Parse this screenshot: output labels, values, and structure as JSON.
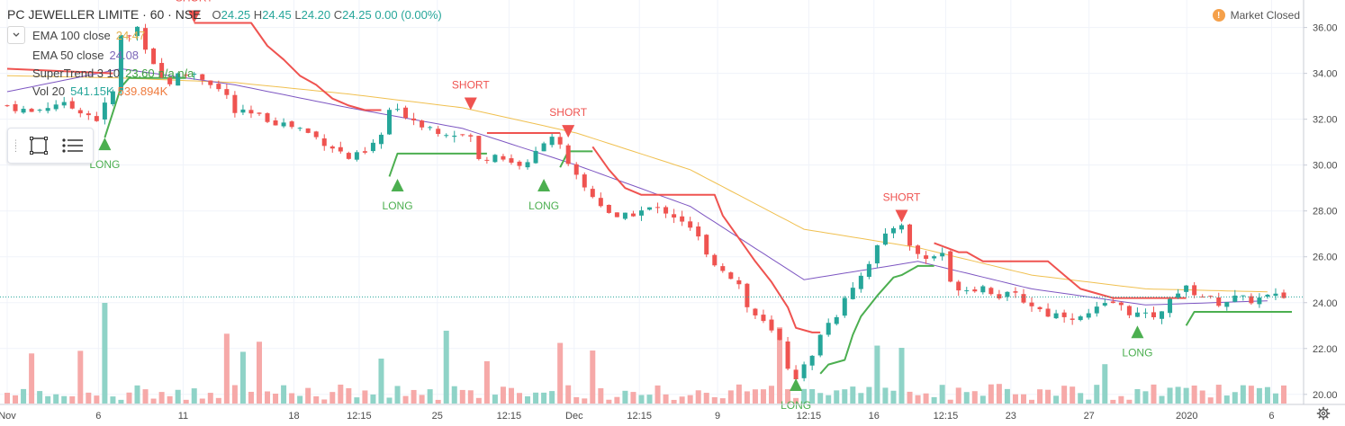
{
  "header": {
    "symbol": "PC JEWELLER LIMITE · 60 · NSE",
    "ohlc": {
      "o": "24.25",
      "h": "24.45",
      "l": "24.20",
      "c": "24.25",
      "chg": "0.00 (0.00%)"
    },
    "o_label": "O",
    "h_label": "H",
    "l_label": "L",
    "c_label": "C"
  },
  "indicators": [
    {
      "name": "EMA 100 close",
      "value": "24.47"
    },
    {
      "name": "EMA 50 close",
      "value": "24.08"
    },
    {
      "name": "SuperTrend 3 10",
      "value": "23.60",
      "extra": "n/a n/a"
    },
    {
      "name": "Vol 20",
      "value": "541.15K",
      "value2": "539.894K"
    }
  ],
  "market_status": "Market Closed",
  "market_icon": "!",
  "colors": {
    "up": "#26a69a",
    "down": "#ef5350",
    "ema100": "#f0c050",
    "ema50": "#7e57c2",
    "st_up": "#4caf50",
    "st_down": "#ef5350",
    "vol_up": "#8fd3c7",
    "vol_down": "#f6a9a8",
    "grid": "#f0f3fa",
    "axis_text": "#4a4a4a"
  },
  "chart_data": {
    "type": "candlestick",
    "symbol": "PC JEWELLER LIMITE",
    "interval": "60",
    "exchange": "NSE",
    "ylim": [
      19.6,
      37.2
    ],
    "y_ticks": [
      "36.00",
      "34.00",
      "32.00",
      "30.00",
      "28.00",
      "26.00",
      "24.00",
      "22.00",
      "20.00"
    ],
    "last_price": "24.25",
    "x_labels": [
      "Nov",
      "6",
      "11",
      "18",
      "12:15",
      "25",
      "12:15",
      "Dec",
      "12:15",
      "9",
      "12:15",
      "16",
      "12:15",
      "23",
      "27",
      "2020",
      "6"
    ],
    "close_path": [
      [
        0,
        32.6
      ],
      [
        3,
        32.3
      ],
      [
        6,
        32.7
      ],
      [
        9,
        32.4
      ],
      [
        11,
        32.0
      ],
      [
        13,
        33.2
      ],
      [
        14,
        35.6
      ],
      [
        15,
        35.6
      ],
      [
        16,
        36.0
      ],
      [
        17,
        35.2
      ],
      [
        18,
        34.5
      ],
      [
        19,
        33.8
      ],
      [
        20,
        33.6
      ],
      [
        21,
        33.9
      ],
      [
        23,
        34.0
      ],
      [
        25,
        33.6
      ],
      [
        27,
        33.0
      ],
      [
        28,
        32.3
      ],
      [
        30,
        32.2
      ],
      [
        32,
        32.0
      ],
      [
        34,
        31.8
      ],
      [
        36,
        31.6
      ],
      [
        38,
        31.2
      ],
      [
        40,
        30.8
      ],
      [
        42,
        30.3
      ],
      [
        44,
        30.5
      ],
      [
        46,
        31.3
      ],
      [
        47,
        32.4
      ],
      [
        49,
        32.2
      ],
      [
        51,
        31.8
      ],
      [
        53,
        31.5
      ],
      [
        55,
        31.4
      ],
      [
        57,
        31.2
      ],
      [
        58,
        30.2
      ],
      [
        60,
        30.5
      ],
      [
        62,
        30.1
      ],
      [
        64,
        30.0
      ],
      [
        66,
        31.1
      ],
      [
        67,
        31.3
      ],
      [
        68,
        30.8
      ],
      [
        69,
        29.9
      ],
      [
        71,
        29.0
      ],
      [
        73,
        28.3
      ],
      [
        75,
        27.6
      ],
      [
        77,
        27.9
      ],
      [
        79,
        28.1
      ],
      [
        81,
        28.0
      ],
      [
        83,
        27.6
      ],
      [
        85,
        26.8
      ],
      [
        86,
        26.0
      ],
      [
        88,
        25.5
      ],
      [
        90,
        24.8
      ],
      [
        91,
        23.8
      ],
      [
        93,
        23.1
      ],
      [
        95,
        22.3
      ],
      [
        96,
        21.2
      ],
      [
        97,
        20.8
      ],
      [
        99,
        21.6
      ],
      [
        100,
        22.7
      ],
      [
        102,
        23.5
      ],
      [
        103,
        24.3
      ],
      [
        105,
        25.2
      ],
      [
        107,
        26.4
      ],
      [
        109,
        27.3
      ],
      [
        110,
        27.5
      ],
      [
        111,
        26.4
      ],
      [
        113,
        25.9
      ],
      [
        115,
        26.2
      ],
      [
        116,
        24.8
      ],
      [
        118,
        24.6
      ],
      [
        120,
        24.7
      ],
      [
        122,
        24.3
      ],
      [
        124,
        24.3
      ],
      [
        126,
        23.9
      ],
      [
        128,
        23.5
      ],
      [
        130,
        23.5
      ],
      [
        132,
        23.3
      ],
      [
        134,
        23.7
      ],
      [
        136,
        24.0
      ],
      [
        138,
        23.6
      ],
      [
        140,
        23.4
      ],
      [
        142,
        23.5
      ],
      [
        143,
        24.3
      ],
      [
        145,
        24.6
      ],
      [
        147,
        24.3
      ],
      [
        149,
        24.0
      ],
      [
        151,
        24.2
      ],
      [
        153,
        24.1
      ],
      [
        155,
        24.25
      ]
    ],
    "ema100_path": [
      [
        0,
        33.9
      ],
      [
        14,
        33.8
      ],
      [
        28,
        33.6
      ],
      [
        42,
        33.1
      ],
      [
        56,
        32.5
      ],
      [
        70,
        31.4
      ],
      [
        84,
        29.8
      ],
      [
        98,
        27.2
      ],
      [
        112,
        26.4
      ],
      [
        126,
        25.2
      ],
      [
        140,
        24.6
      ],
      [
        155,
        24.47
      ]
    ],
    "ema50_path": [
      [
        0,
        33.2
      ],
      [
        14,
        34.2
      ],
      [
        28,
        33.5
      ],
      [
        42,
        32.5
      ],
      [
        56,
        31.6
      ],
      [
        70,
        30.0
      ],
      [
        84,
        28.2
      ],
      [
        98,
        25.0
      ],
      [
        112,
        25.8
      ],
      [
        126,
        24.6
      ],
      [
        140,
        23.9
      ],
      [
        155,
        24.08
      ]
    ],
    "supertrend": [
      {
        "dir": "down",
        "points": [
          [
            0,
            34.2
          ],
          [
            13,
            34.0
          ]
        ]
      },
      {
        "dir": "up",
        "points": [
          [
            12,
            31.2
          ],
          [
            14,
            33.4
          ],
          [
            15,
            33.8
          ],
          [
            16,
            33.8
          ],
          [
            22,
            33.8
          ]
        ]
      },
      {
        "dir": "down",
        "points": [
          [
            23,
            36.2
          ],
          [
            30,
            36.2
          ],
          [
            32,
            35.2
          ],
          [
            34,
            34.6
          ],
          [
            36,
            33.9
          ],
          [
            38,
            33.5
          ],
          [
            40,
            32.9
          ],
          [
            42,
            32.6
          ],
          [
            44,
            32.4
          ],
          [
            46,
            32.4
          ]
        ]
      },
      {
        "dir": "up",
        "points": [
          [
            47,
            29.5
          ],
          [
            48,
            30.5
          ],
          [
            59,
            30.5
          ]
        ]
      },
      {
        "dir": "down",
        "points": [
          [
            59,
            31.4
          ],
          [
            68,
            31.4
          ]
        ]
      },
      {
        "dir": "up",
        "points": [
          [
            68,
            29.9
          ],
          [
            69,
            30.6
          ],
          [
            72,
            30.6
          ]
        ]
      },
      {
        "dir": "down",
        "points": [
          [
            72,
            30.8
          ],
          [
            74,
            29.8
          ],
          [
            76,
            29.0
          ],
          [
            78,
            28.7
          ],
          [
            87,
            28.7
          ],
          [
            88,
            27.8
          ],
          [
            90,
            26.8
          ],
          [
            92,
            25.8
          ],
          [
            94,
            24.9
          ],
          [
            96,
            23.8
          ],
          [
            97,
            22.9
          ],
          [
            99,
            22.7
          ],
          [
            100,
            22.7
          ]
        ]
      },
      {
        "dir": "up",
        "points": [
          [
            100,
            20.9
          ],
          [
            101,
            21.3
          ],
          [
            103,
            21.5
          ],
          [
            104,
            22.6
          ],
          [
            105,
            23.4
          ],
          [
            107,
            24.3
          ],
          [
            109,
            25.1
          ],
          [
            110,
            25.2
          ],
          [
            112,
            25.6
          ],
          [
            114,
            25.6
          ]
        ]
      },
      {
        "dir": "down",
        "points": [
          [
            114,
            26.6
          ],
          [
            117,
            26.2
          ],
          [
            118,
            26.2
          ],
          [
            120,
            25.8
          ],
          [
            128,
            25.8
          ],
          [
            130,
            25.2
          ],
          [
            132,
            24.6
          ],
          [
            134,
            24.4
          ],
          [
            136,
            24.2
          ],
          [
            140,
            24.2
          ],
          [
            145,
            24.2
          ]
        ]
      },
      {
        "dir": "up",
        "points": [
          [
            145,
            23.0
          ],
          [
            146,
            23.6
          ],
          [
            158,
            23.6
          ]
        ]
      }
    ],
    "signals": [
      {
        "type": "LONG",
        "i": 12,
        "price": 31.2
      },
      {
        "type": "SHORT",
        "i": 23,
        "price": 36.2
      },
      {
        "type": "LONG",
        "i": 48,
        "price": 29.4
      },
      {
        "type": "SHORT",
        "i": 57,
        "price": 32.4
      },
      {
        "type": "LONG",
        "i": 66,
        "price": 29.4
      },
      {
        "type": "SHORT",
        "i": 69,
        "price": 31.2
      },
      {
        "type": "LONG",
        "i": 97,
        "price": 20.7
      },
      {
        "type": "SHORT",
        "i": 110,
        "price": 27.5
      },
      {
        "type": "LONG",
        "i": 139,
        "price": 23.0
      }
    ]
  }
}
